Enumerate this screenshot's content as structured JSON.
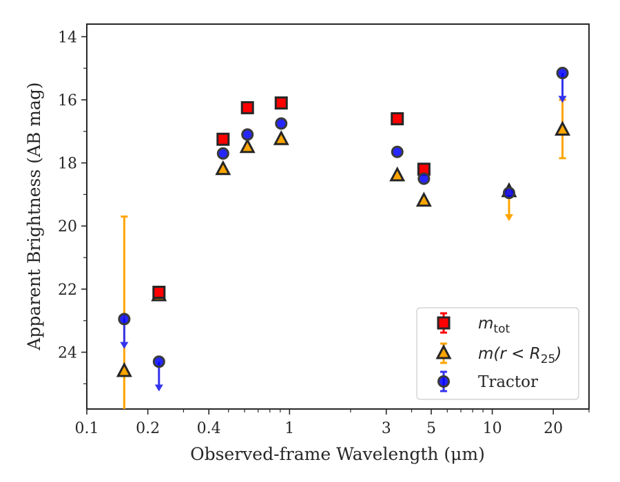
{
  "chart_data": {
    "type": "scatter",
    "xlabel": "Observed-frame Wavelength (μm)",
    "ylabel": "Apparent Brightness (AB mag)",
    "x_scale": "log",
    "xlim": [
      0.1,
      30
    ],
    "ylim": [
      25.8,
      13.6
    ],
    "y_inverted": true,
    "x_ticks": [
      {
        "value": 0.1,
        "label": "0.1"
      },
      {
        "value": 0.2,
        "label": "0.2"
      },
      {
        "value": 0.4,
        "label": "0.4"
      },
      {
        "value": 1,
        "label": "1"
      },
      {
        "value": 3,
        "label": "3"
      },
      {
        "value": 5,
        "label": "5"
      },
      {
        "value": 10,
        "label": "10"
      },
      {
        "value": 20,
        "label": "20"
      }
    ],
    "y_ticks": [
      {
        "value": 14,
        "label": "14"
      },
      {
        "value": 16,
        "label": "16"
      },
      {
        "value": 18,
        "label": "18"
      },
      {
        "value": 20,
        "label": "20"
      },
      {
        "value": 22,
        "label": "22"
      },
      {
        "value": 24,
        "label": "24"
      }
    ],
    "grid": false,
    "legend_position": "bottom-right",
    "series": [
      {
        "name": "m_tot",
        "label_main": "m",
        "label_sub": "tot",
        "marker": "square",
        "color": "#ff0000",
        "edge_color": "#262626",
        "points": [
          {
            "x": 0.227,
            "y": 22.1
          },
          {
            "x": 0.47,
            "y": 17.25
          },
          {
            "x": 0.62,
            "y": 16.25
          },
          {
            "x": 0.91,
            "y": 16.1
          },
          {
            "x": 3.4,
            "y": 16.6
          },
          {
            "x": 4.6,
            "y": 18.2
          }
        ]
      },
      {
        "name": "m(r<R_25)",
        "label_main": "m(r < R",
        "label_sub": "25",
        "label_tail": ")",
        "marker": "triangle",
        "color": "#ffa500",
        "edge_color": "#262626",
        "points": [
          {
            "x": 0.153,
            "y": 24.6,
            "err_lo": 24.6,
            "err_hi": 26.0
          },
          {
            "x": 0.227,
            "y": 22.2
          },
          {
            "x": 0.47,
            "y": 18.2
          },
          {
            "x": 0.62,
            "y": 17.5
          },
          {
            "x": 0.91,
            "y": 17.25
          },
          {
            "x": 3.4,
            "y": 18.4
          },
          {
            "x": 4.6,
            "y": 19.2
          },
          {
            "x": 12.1,
            "y": 18.9,
            "upper_limit": true,
            "arrow_to": 19.8
          },
          {
            "x": 22.2,
            "y": 16.95,
            "err_lo": 16.0,
            "err_hi": 17.85
          }
        ]
      },
      {
        "name": "Tractor",
        "label_main": "Tractor",
        "marker": "circle",
        "color": "#0000ff",
        "edge_color": "#3a3a3a",
        "points": [
          {
            "x": 0.153,
            "y": 22.95,
            "upper_limit": true,
            "arrow_to": 23.85
          },
          {
            "x": 0.227,
            "y": 24.3,
            "upper_limit": true,
            "arrow_to": 25.2
          },
          {
            "x": 0.47,
            "y": 17.7
          },
          {
            "x": 0.62,
            "y": 17.1
          },
          {
            "x": 0.91,
            "y": 16.75
          },
          {
            "x": 3.4,
            "y": 17.65
          },
          {
            "x": 4.6,
            "y": 18.5
          },
          {
            "x": 12.1,
            "y": 18.95
          },
          {
            "x": 22.2,
            "y": 15.15,
            "upper_limit": true,
            "arrow_to": 16.05
          }
        ]
      }
    ],
    "extra_error_bars": [
      {
        "series": "m(r<R_25)",
        "x": 0.153,
        "y_from": 19.7,
        "y_to": 26.0,
        "color": "#ffa500"
      }
    ]
  }
}
